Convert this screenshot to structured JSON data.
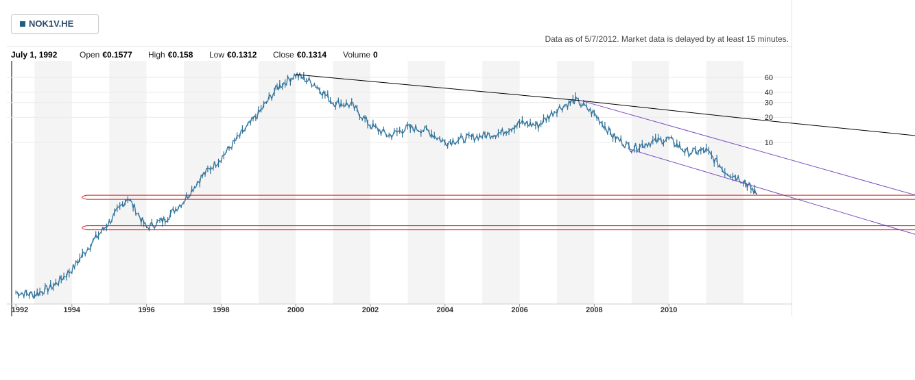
{
  "ticker": {
    "symbol": "NOK1V.HE",
    "color": "#1d5e86"
  },
  "data_note": "Data as of 5/7/2012. Market data is delayed by at least 15 minutes.",
  "info_bar": {
    "date": "July 1, 1992",
    "open_label": "Open",
    "open_value": "€0.1577",
    "high_label": "High",
    "high_value": "€0.158",
    "low_label": "Low",
    "low_value": "€0.1312",
    "close_label": "Close",
    "close_value": "€0.1314",
    "volume_label": "Volume",
    "volume_value": "0"
  },
  "chart_data": {
    "type": "line",
    "title": "",
    "xlabel": "",
    "ylabel": "",
    "y_scale": "log",
    "series": [
      {
        "color": "#3a7aa0",
        "x": [
          1992.5,
          1993.0,
          1993.5,
          1994.0,
          1994.5,
          1995.0,
          1995.5,
          1996.0,
          1996.5,
          1997.0,
          1997.5,
          1998.0,
          1998.5,
          1999.0,
          1999.5,
          2000.0,
          2000.5,
          2001.0,
          2001.5,
          2002.0,
          2002.5,
          2003.0,
          2003.5,
          2004.0,
          2004.5,
          2005.0,
          2005.5,
          2006.0,
          2006.5,
          2007.0,
          2007.5,
          2008.0,
          2008.5,
          2009.0,
          2009.5,
          2010.0,
          2010.5,
          2011.0,
          2011.5,
          2012.0,
          2012.35
        ],
        "values": [
          0.16,
          0.15,
          0.19,
          0.3,
          0.6,
          1.1,
          2.2,
          0.95,
          1.2,
          2.0,
          4.0,
          6.5,
          12,
          22,
          45,
          65,
          50,
          30,
          28,
          16,
          12,
          15,
          14,
          10,
          11,
          12,
          13,
          17,
          16,
          25,
          32,
          22,
          12,
          8.5,
          10,
          11,
          7.5,
          8,
          4.5,
          3.5,
          2.4
        ]
      }
    ],
    "x_ticks": [
      "1992",
      "1994",
      "1996",
      "1998",
      "2000",
      "2002",
      "2004",
      "2006",
      "2008",
      "2010"
    ],
    "y_ticks": [
      {
        "label": "60",
        "value": 60
      },
      {
        "label": "40",
        "value": 40
      },
      {
        "label": "30",
        "value": 30
      },
      {
        "label": "20",
        "value": 20
      },
      {
        "label": "10",
        "value": 10
      }
    ],
    "annotations": [
      {
        "type": "trendline",
        "color": "#000000",
        "points": [
          [
            2000.0,
            65
          ],
          [
            2007.5,
            32
          ],
          [
            2012.2,
            19
          ],
          [
            2017.5,
            11
          ]
        ]
      },
      {
        "type": "channel",
        "color": "#7a4fc0",
        "points": [
          [
            2007.6,
            32
          ],
          [
            2017.5,
            1.8
          ]
        ]
      },
      {
        "type": "channel",
        "color": "#7a4fc0",
        "points": [
          [
            2008.9,
            8.4
          ],
          [
            2017.5,
            0.6
          ]
        ]
      },
      {
        "type": "support-band",
        "color": "#d11b1b",
        "value": 2.2
      },
      {
        "type": "support-band",
        "color": "#d11b1b",
        "value": 0.95
      }
    ],
    "grid": "alternating year bands",
    "legend": "top-left"
  }
}
